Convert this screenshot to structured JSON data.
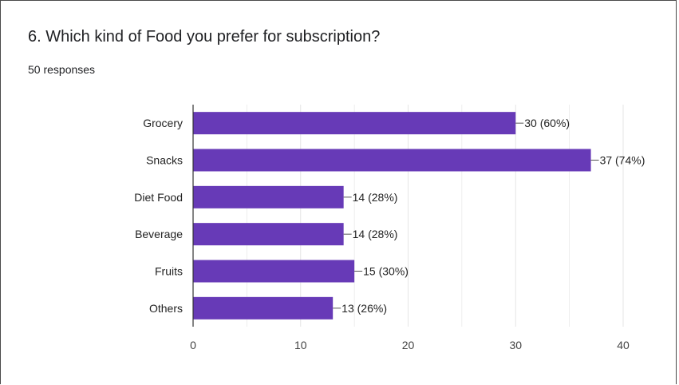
{
  "question": {
    "title": "6. Which kind of Food you prefer for subscription?",
    "responses": "50 responses"
  },
  "colors": {
    "bar": "#673ab7",
    "grid": "#e6e6e6",
    "axis": "#333333",
    "text": "#222222",
    "tick_text": "#444444"
  },
  "chart_data": {
    "type": "bar",
    "orientation": "horizontal",
    "categories": [
      "Grocery",
      "Snacks",
      "Diet Food",
      "Beverage",
      "Fruits",
      "Others"
    ],
    "values": [
      30,
      37,
      14,
      14,
      15,
      13
    ],
    "data_labels": [
      "30 (60%)",
      "37 (74%)",
      "14 (28%)",
      "14 (28%)",
      "15 (30%)",
      "13 (26%)"
    ],
    "xlim": [
      0,
      40
    ],
    "xticks": [
      0,
      10,
      20,
      30,
      40
    ],
    "grid": true,
    "legend": "none"
  }
}
